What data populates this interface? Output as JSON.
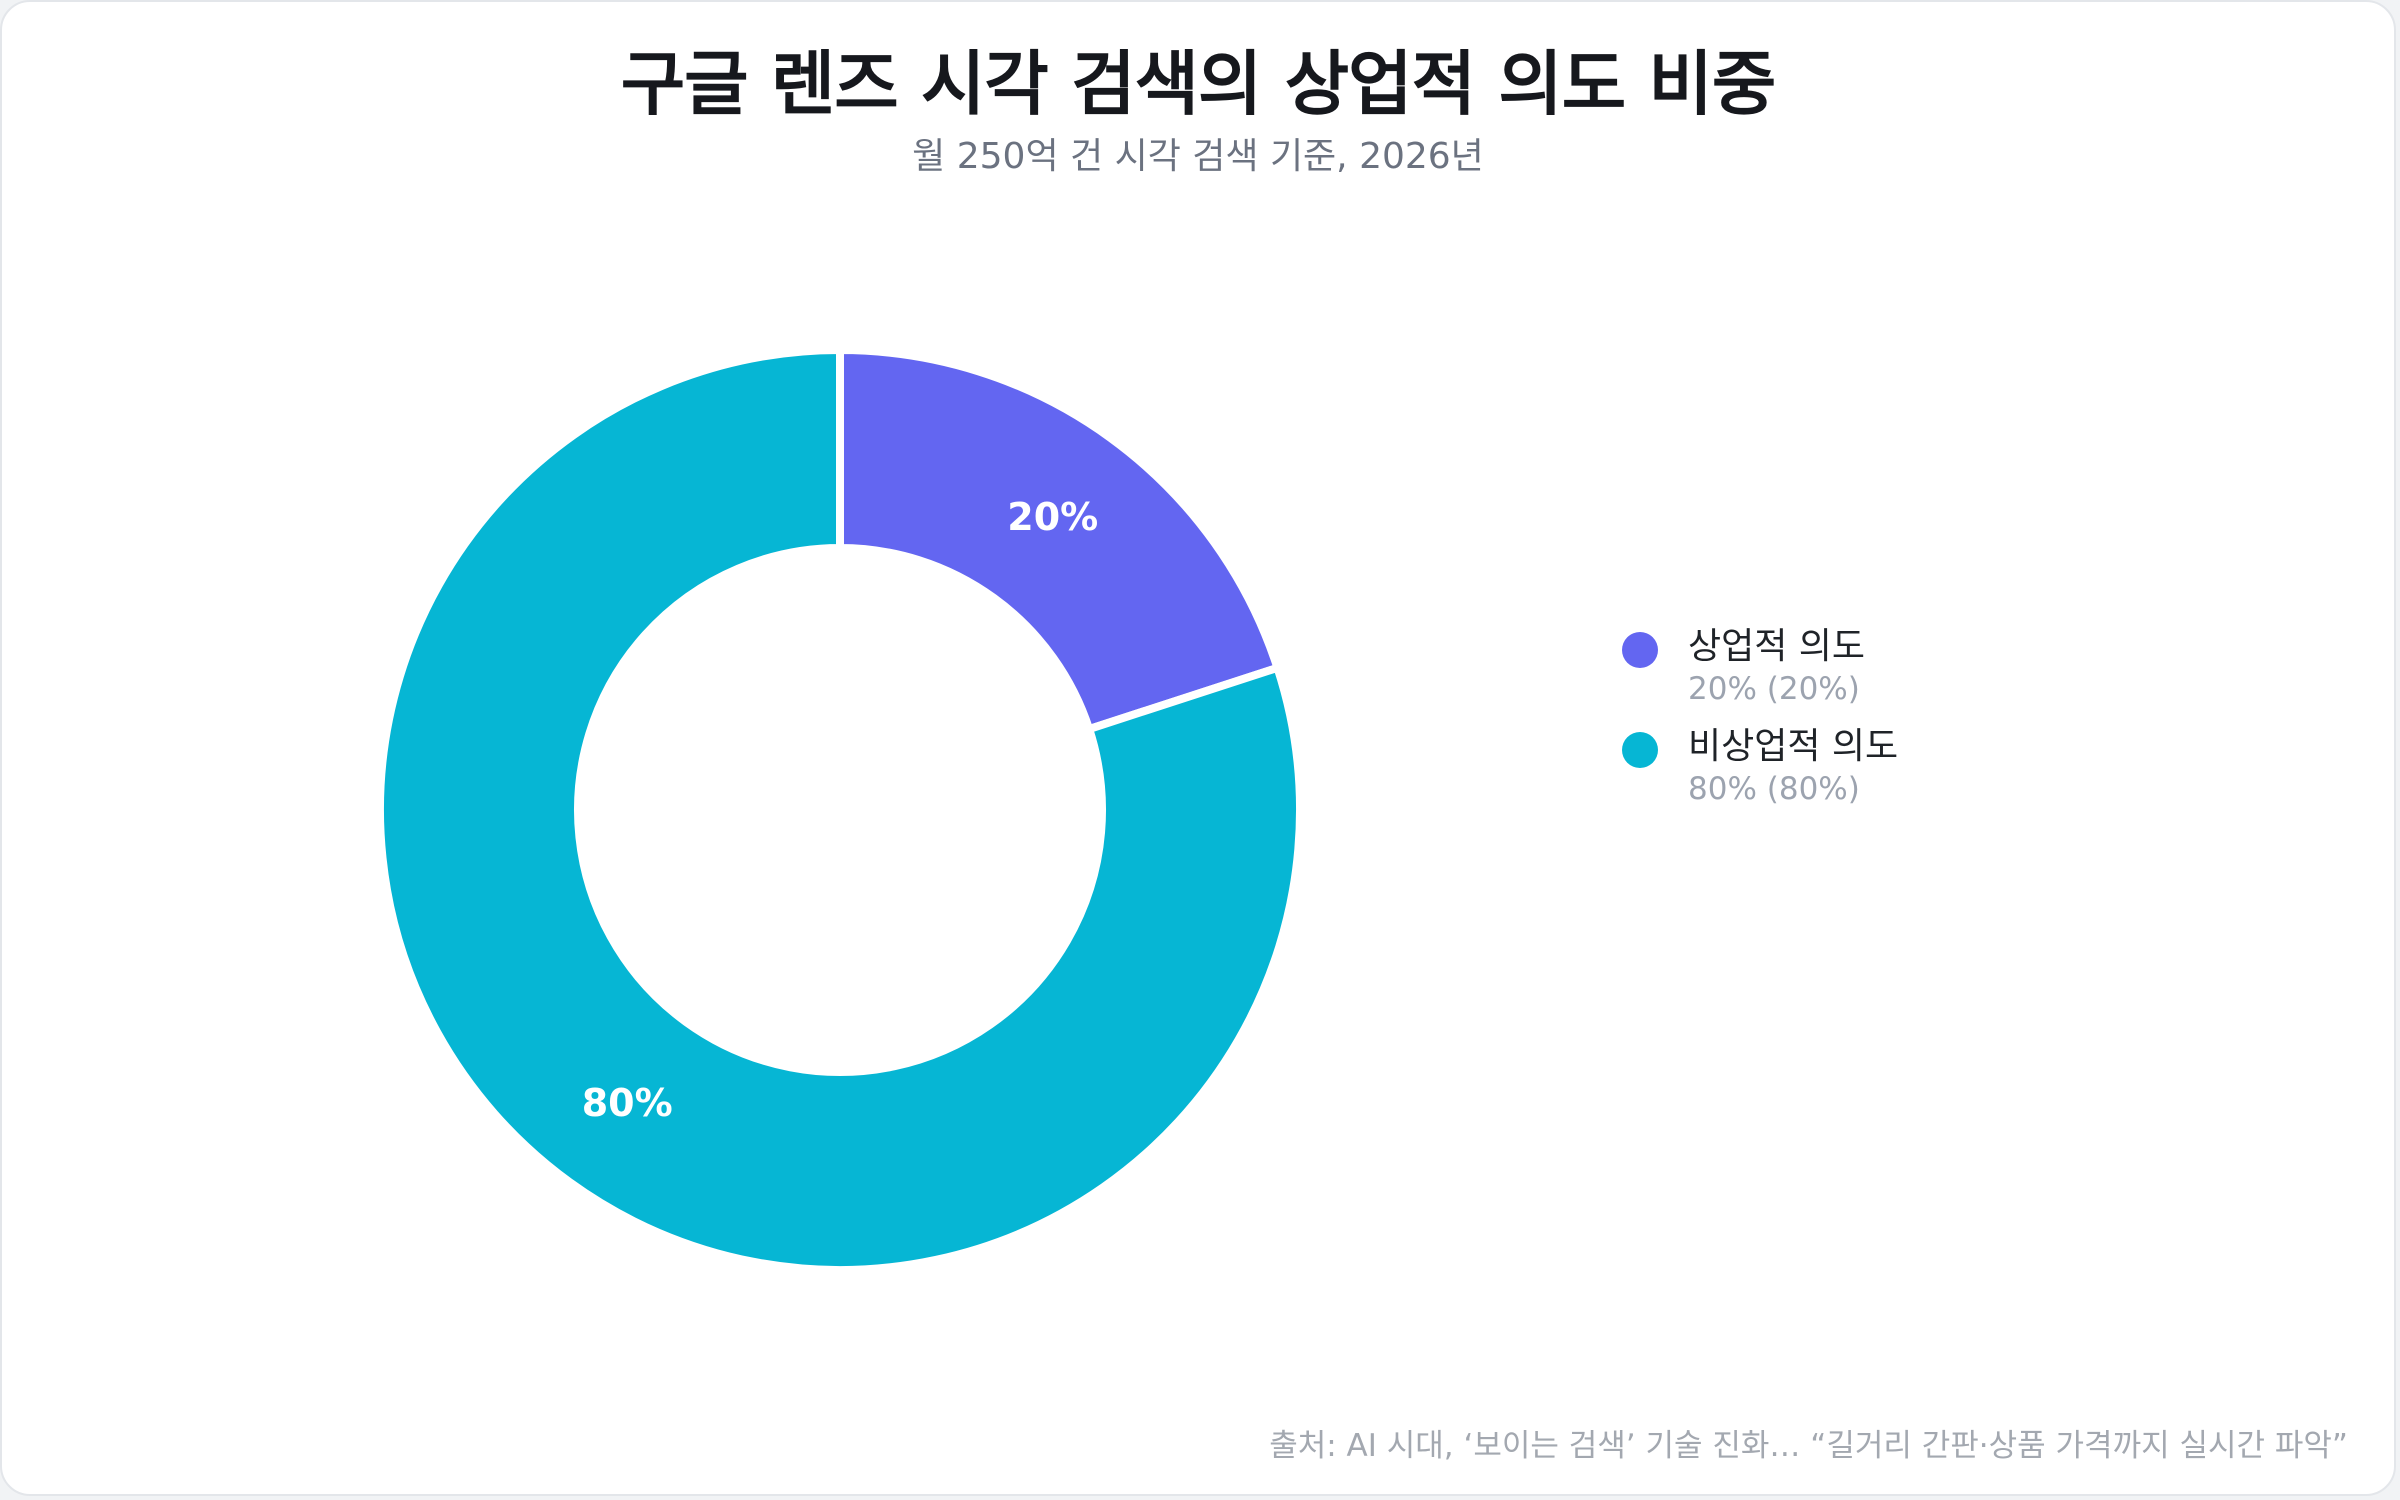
{
  "title": "구글 렌즈 시각 검색의 상업적 의도 비중",
  "subtitle": "월 250억 건 시각 검색 기준, 2026년",
  "source": "출처: AI 시대, ‘보이는 검색’ 기술 진화… “길거리 간판·상품 가격까지 실시간 파악”",
  "colors": {
    "commercial": "#6366f1",
    "non_commercial": "#06b6d4",
    "background": "#ffffff"
  },
  "chart_data": {
    "type": "pie",
    "donut": true,
    "start": "12 o'clock",
    "direction": "clockwise",
    "legend_position": "right",
    "slices": [
      {
        "name": "상업적 의도",
        "value": 20,
        "label": "20%",
        "legend_value": "20% (20%)",
        "color": "#6366f1"
      },
      {
        "name": "비상업적 의도",
        "value": 80,
        "label": "80%",
        "legend_value": "80% (80%)",
        "color": "#06b6d4"
      }
    ]
  }
}
